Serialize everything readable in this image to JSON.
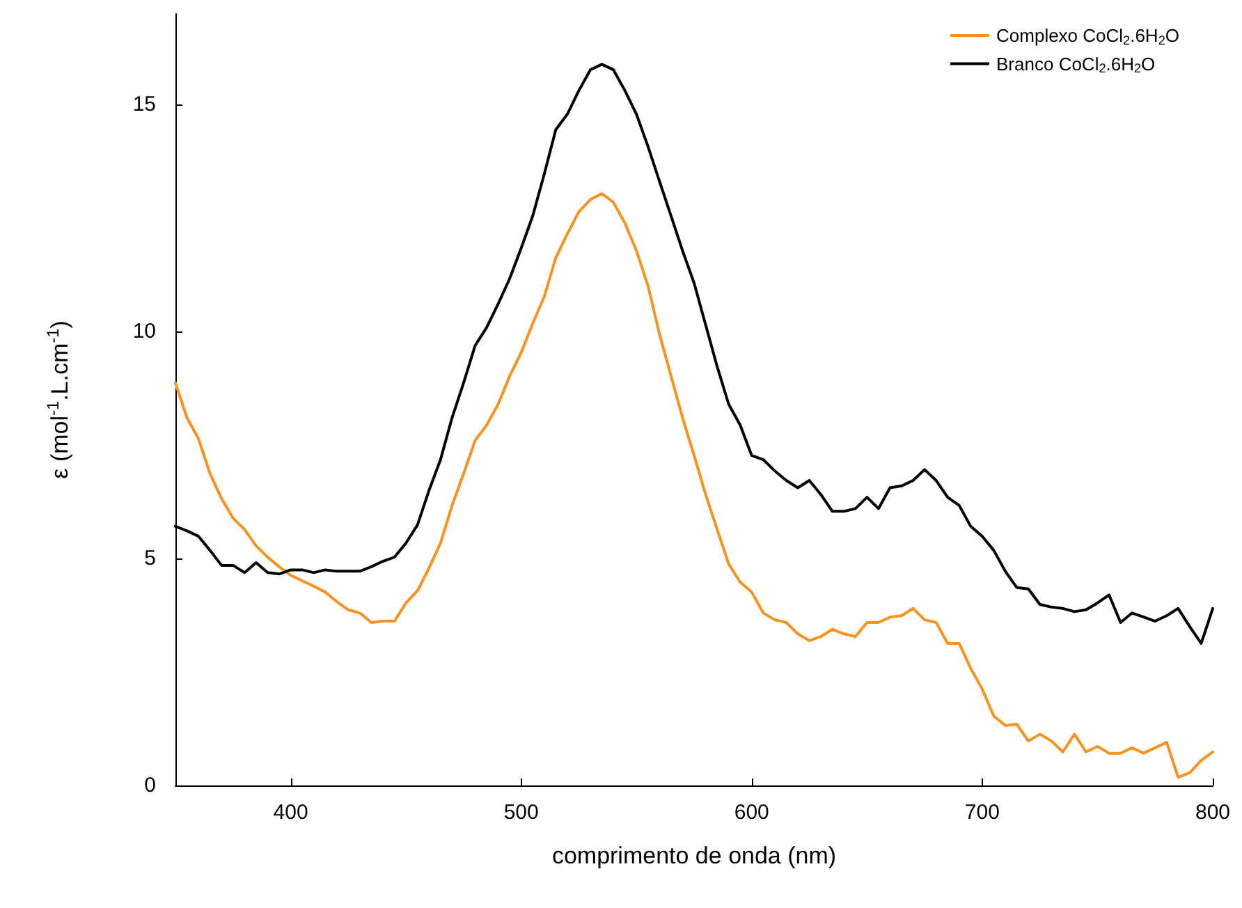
{
  "chart_data": {
    "type": "line",
    "xlabel": "comprimento de onda (nm)",
    "ylabel": "ε (mol$^{-1}$.L.cm$^{-1}$)",
    "x": [
      350,
      355,
      360,
      365,
      370,
      375,
      380,
      385,
      390,
      395,
      400,
      405,
      410,
      415,
      420,
      425,
      430,
      435,
      440,
      445,
      450,
      455,
      460,
      465,
      470,
      475,
      480,
      485,
      490,
      495,
      500,
      505,
      510,
      515,
      520,
      525,
      530,
      535,
      540,
      545,
      550,
      555,
      560,
      565,
      570,
      575,
      580,
      585,
      590,
      595,
      600,
      605,
      610,
      615,
      620,
      625,
      630,
      635,
      640,
      645,
      650,
      655,
      660,
      665,
      670,
      675,
      680,
      685,
      690,
      695,
      700,
      705,
      710,
      715,
      720,
      725,
      730,
      735,
      740,
      745,
      750,
      755,
      760,
      765,
      770,
      775,
      780,
      785,
      790,
      795,
      800
    ],
    "series": [
      {
        "name": "Complexo CoCl$_{2}$.6H$_{2}$O",
        "color": "#f7931e",
        "values": [
          8.87,
          8.1,
          7.64,
          6.87,
          6.32,
          5.89,
          5.64,
          5.28,
          5.03,
          4.82,
          4.63,
          4.51,
          4.39,
          4.26,
          4.05,
          3.87,
          3.8,
          3.59,
          3.62,
          3.62,
          4.02,
          4.29,
          4.79,
          5.34,
          6.17,
          6.87,
          7.6,
          7.94,
          8.4,
          9.02,
          9.54,
          10.18,
          10.77,
          11.63,
          12.15,
          12.64,
          12.91,
          13.04,
          12.85,
          12.39,
          11.78,
          11.01,
          9.94,
          9.02,
          8.1,
          7.27,
          6.41,
          5.64,
          4.88,
          4.48,
          4.26,
          3.8,
          3.65,
          3.59,
          3.34,
          3.19,
          3.28,
          3.44,
          3.34,
          3.28,
          3.59,
          3.59,
          3.71,
          3.74,
          3.9,
          3.65,
          3.59,
          3.13,
          3.13,
          2.58,
          2.12,
          1.53,
          1.32,
          1.35,
          0.98,
          1.13,
          0.98,
          0.74,
          1.13,
          0.74,
          0.86,
          0.71,
          0.71,
          0.83,
          0.71,
          0.83,
          0.95,
          0.18,
          0.28,
          0.55,
          0.74
        ]
      },
      {
        "name": "Branco CoCl$_{2}$.6H$_{2}$O",
        "color": "#000000",
        "values": [
          5.71,
          5.61,
          5.49,
          5.18,
          4.85,
          4.85,
          4.69,
          4.91,
          4.69,
          4.66,
          4.75,
          4.75,
          4.69,
          4.75,
          4.72,
          4.72,
          4.72,
          4.82,
          4.94,
          5.03,
          5.34,
          5.74,
          6.5,
          7.18,
          8.1,
          8.87,
          9.69,
          10.09,
          10.61,
          11.17,
          11.84,
          12.55,
          13.47,
          14.45,
          14.79,
          15.31,
          15.77,
          15.89,
          15.77,
          15.31,
          14.79,
          14.08,
          13.31,
          12.55,
          11.78,
          11.07,
          10.15,
          9.23,
          8.4,
          7.94,
          7.27,
          7.18,
          6.93,
          6.72,
          6.56,
          6.72,
          6.41,
          6.04,
          6.04,
          6.1,
          6.35,
          6.1,
          6.56,
          6.6,
          6.72,
          6.96,
          6.72,
          6.35,
          6.17,
          5.71,
          5.49,
          5.18,
          4.72,
          4.36,
          4.33,
          3.99,
          3.93,
          3.9,
          3.83,
          3.87,
          4.02,
          4.2,
          3.59,
          3.8,
          3.71,
          3.62,
          3.74,
          3.9,
          3.5,
          3.13,
          3.9
        ]
      }
    ],
    "xlim": [
      350,
      800
    ],
    "xticks": [
      400,
      500,
      600,
      700,
      800
    ],
    "ylim": [
      0,
      17
    ],
    "yticks": [
      0,
      5,
      10,
      15
    ],
    "grid": false,
    "legend": "top right",
    "marker": "none"
  }
}
